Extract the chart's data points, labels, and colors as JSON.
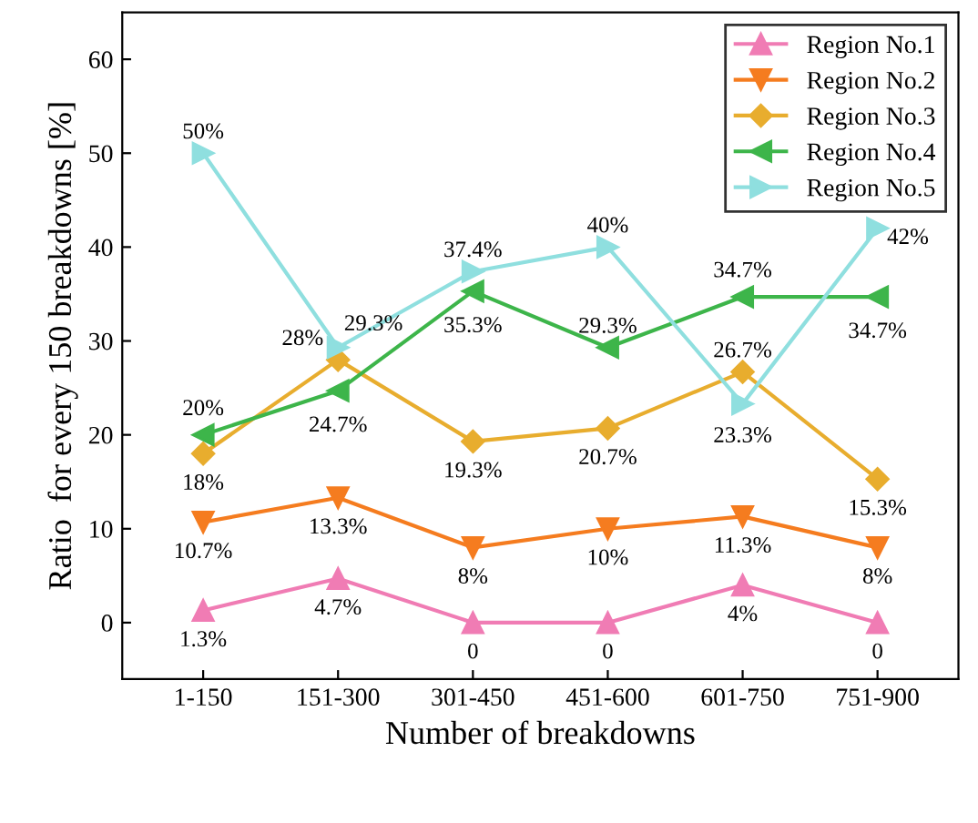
{
  "chart_data": {
    "type": "line",
    "xlabel": "Number of breakdowns",
    "ylabel": "Ratio  for every 150 breakdowns [%]",
    "categories": [
      "1-150",
      "151-300",
      "301-450",
      "451-600",
      "601-750",
      "751-900"
    ],
    "ylim": [
      -6,
      65
    ],
    "yticks": [
      0,
      10,
      20,
      30,
      40,
      50,
      60
    ],
    "grid": false,
    "legend": "top right",
    "series": [
      {
        "name": "Region No.1",
        "color": "#f07cb4",
        "marker": "triangle-up",
        "values": [
          1.3,
          4.7,
          0,
          0,
          4,
          0
        ],
        "value_labels": [
          "1.3%",
          "4.7%",
          "0",
          "0",
          "4%",
          "0"
        ]
      },
      {
        "name": "Region No.2",
        "color": "#f57c1f",
        "marker": "triangle-down",
        "values": [
          10.7,
          13.3,
          8,
          10,
          11.3,
          8
        ],
        "value_labels": [
          "10.7%",
          "13.3%",
          "8%",
          "10%",
          "11.3%",
          "8%"
        ]
      },
      {
        "name": "Region No.3",
        "color": "#e8ad2e",
        "marker": "diamond",
        "values": [
          18,
          28,
          19.3,
          20.7,
          26.7,
          15.3
        ],
        "value_labels": [
          "18%",
          "28%",
          "19.3%",
          "20.7%",
          "26.7%",
          "15.3%"
        ]
      },
      {
        "name": "Region No.4",
        "color": "#3db54a",
        "marker": "triangle-left",
        "values": [
          20,
          24.7,
          35.3,
          29.3,
          34.7,
          34.7
        ],
        "value_labels": [
          "20%",
          "24.7%",
          "35.3%",
          "29.3%",
          "34.7%",
          "34.7%"
        ]
      },
      {
        "name": "Region No.5",
        "color": "#8fdfdf",
        "marker": "triangle-right",
        "values": [
          50,
          29.3,
          37.4,
          40,
          23.3,
          42
        ],
        "value_labels": [
          "50%",
          "29.3%",
          "37.4%",
          "40%",
          "23.3%",
          "42%"
        ]
      }
    ]
  }
}
